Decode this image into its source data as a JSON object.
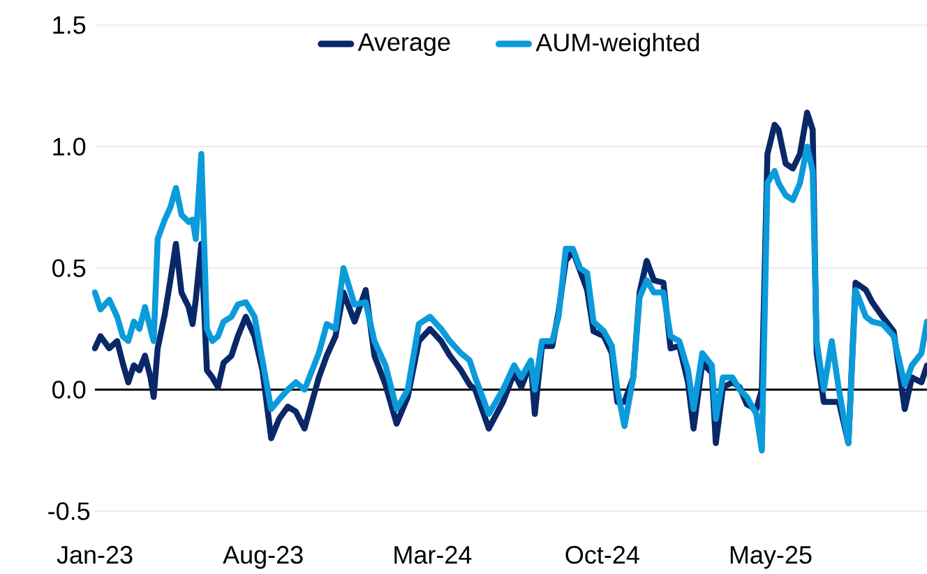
{
  "chart_data": {
    "type": "line",
    "x": [
      "2023-01-01",
      "2023-01-08",
      "2023-01-19",
      "2023-01-29",
      "2023-02-05",
      "2023-02-12",
      "2023-02-19",
      "2023-02-26",
      "2023-03-05",
      "2023-03-12",
      "2023-03-16",
      "2023-03-21",
      "2023-03-30",
      "2023-04-06",
      "2023-04-13",
      "2023-04-20",
      "2023-04-29",
      "2023-05-04",
      "2023-05-08",
      "2023-05-15",
      "2023-05-22",
      "2023-05-29",
      "2023-06-05",
      "2023-06-12",
      "2023-06-22",
      "2023-06-30",
      "2023-07-10",
      "2023-07-21",
      "2023-07-31",
      "2023-08-11",
      "2023-08-21",
      "2023-09-01",
      "2023-09-11",
      "2023-09-22",
      "2023-10-10",
      "2023-10-20",
      "2023-10-31",
      "2023-11-10",
      "2023-11-24",
      "2023-12-08",
      "2023-12-19",
      "2024-01-02",
      "2024-01-16",
      "2024-01-30",
      "2024-02-13",
      "2024-02-27",
      "2024-03-12",
      "2024-03-23",
      "2024-04-06",
      "2024-04-17",
      "2024-04-24",
      "2024-05-11",
      "2024-05-29",
      "2024-06-12",
      "2024-06-21",
      "2024-07-03",
      "2024-07-08",
      "2024-07-17",
      "2024-07-30",
      "2024-08-07",
      "2024-08-16",
      "2024-08-25",
      "2024-09-03",
      "2024-09-12",
      "2024-09-20",
      "2024-10-03",
      "2024-10-13",
      "2024-10-20",
      "2024-10-29",
      "2024-11-09",
      "2024-11-17",
      "2024-11-26",
      "2024-12-05",
      "2024-12-17",
      "2024-12-26",
      "2025-01-06",
      "2025-01-17",
      "2025-01-24",
      "2025-02-04",
      "2025-02-16",
      "2025-02-21",
      "2025-03-02",
      "2025-03-14",
      "2025-03-23",
      "2025-04-01",
      "2025-04-13",
      "2025-04-20",
      "2025-04-27",
      "2025-05-06",
      "2025-05-11",
      "2025-05-20",
      "2025-05-29",
      "2025-06-07",
      "2025-06-16",
      "2025-06-23",
      "2025-06-28",
      "2025-07-07",
      "2025-07-17",
      "2025-07-26",
      "2025-08-07",
      "2025-08-16",
      "2025-08-29",
      "2025-09-06",
      "2025-09-19",
      "2025-10-03",
      "2025-10-17",
      "2025-10-26",
      "2025-11-07",
      "2025-11-14"
    ],
    "series": [
      {
        "name": "Average",
        "color": "#0a2868",
        "values": [
          0.17,
          0.22,
          0.17,
          0.2,
          0.11,
          0.03,
          0.1,
          0.08,
          0.14,
          0.05,
          -0.03,
          0.17,
          0.31,
          0.45,
          0.6,
          0.4,
          0.34,
          0.27,
          0.37,
          0.6,
          0.08,
          0.05,
          0.01,
          0.11,
          0.14,
          0.22,
          0.3,
          0.22,
          0.08,
          -0.2,
          -0.12,
          -0.07,
          -0.09,
          -0.16,
          0.05,
          0.14,
          0.22,
          0.4,
          0.28,
          0.41,
          0.14,
          0.02,
          -0.14,
          -0.03,
          0.2,
          0.25,
          0.2,
          0.14,
          0.08,
          0.02,
          0.0,
          -0.16,
          -0.05,
          0.07,
          0.01,
          0.11,
          -0.1,
          0.18,
          0.18,
          0.32,
          0.53,
          0.57,
          0.49,
          0.41,
          0.24,
          0.22,
          0.15,
          -0.05,
          -0.05,
          0.05,
          0.4,
          0.53,
          0.45,
          0.44,
          0.17,
          0.18,
          0.03,
          -0.16,
          0.11,
          0.07,
          -0.22,
          0.01,
          0.03,
          0.01,
          -0.06,
          -0.08,
          0.0,
          0.97,
          1.09,
          1.07,
          0.93,
          0.91,
          0.97,
          1.14,
          1.07,
          0.15,
          -0.05,
          -0.05,
          -0.05,
          -0.22,
          0.44,
          0.41,
          0.36,
          0.3,
          0.24,
          -0.08,
          0.05,
          0.03,
          0.1
        ]
      },
      {
        "name": "AUM-weighted",
        "color": "#0b9bdb",
        "values": [
          0.4,
          0.33,
          0.37,
          0.3,
          0.22,
          0.2,
          0.28,
          0.25,
          0.34,
          0.25,
          0.2,
          0.62,
          0.7,
          0.75,
          0.83,
          0.72,
          0.69,
          0.7,
          0.62,
          0.97,
          0.25,
          0.2,
          0.22,
          0.28,
          0.3,
          0.35,
          0.36,
          0.3,
          0.12,
          -0.08,
          -0.04,
          0.0,
          0.03,
          0.0,
          0.15,
          0.27,
          0.25,
          0.5,
          0.35,
          0.36,
          0.2,
          0.1,
          -0.08,
          0.0,
          0.27,
          0.3,
          0.25,
          0.2,
          0.15,
          0.12,
          0.05,
          -0.1,
          0.0,
          0.1,
          0.05,
          0.12,
          0.0,
          0.2,
          0.2,
          0.3,
          0.58,
          0.58,
          0.5,
          0.48,
          0.28,
          0.24,
          0.18,
          0.0,
          -0.15,
          0.05,
          0.38,
          0.45,
          0.4,
          0.4,
          0.22,
          0.2,
          0.08,
          -0.08,
          0.15,
          0.1,
          -0.12,
          0.05,
          0.05,
          0.0,
          -0.03,
          -0.1,
          -0.25,
          0.85,
          0.9,
          0.85,
          0.8,
          0.78,
          0.85,
          1.0,
          0.9,
          0.2,
          0.0,
          0.2,
          0.0,
          -0.22,
          0.41,
          0.3,
          0.28,
          0.27,
          0.22,
          0.02,
          0.1,
          0.15,
          0.28
        ]
      }
    ],
    "xlim": [
      "2023-01-01",
      "2025-11-14"
    ],
    "xticks": [
      {
        "value": "2023-01-01",
        "label": "Jan-23"
      },
      {
        "value": "2023-08-01",
        "label": "Aug-23"
      },
      {
        "value": "2024-03-01",
        "label": "Mar-24"
      },
      {
        "value": "2024-10-01",
        "label": "Oct-24"
      },
      {
        "value": "2025-05-01",
        "label": "May-25"
      }
    ],
    "ylim": [
      -0.5,
      1.5
    ],
    "yticks": [
      {
        "value": -0.5,
        "label": "-0.5"
      },
      {
        "value": 0,
        "label": "0.0"
      },
      {
        "value": 0.5,
        "label": "0.5"
      },
      {
        "value": 1.0,
        "label": "1.0"
      },
      {
        "value": 1.5,
        "label": "1.5"
      }
    ],
    "ref_lines": [
      {
        "axis": "y",
        "value": 0,
        "color": "#000000"
      }
    ],
    "grid": "y",
    "legend": "top",
    "marker": "none",
    "line_style": "solid"
  }
}
